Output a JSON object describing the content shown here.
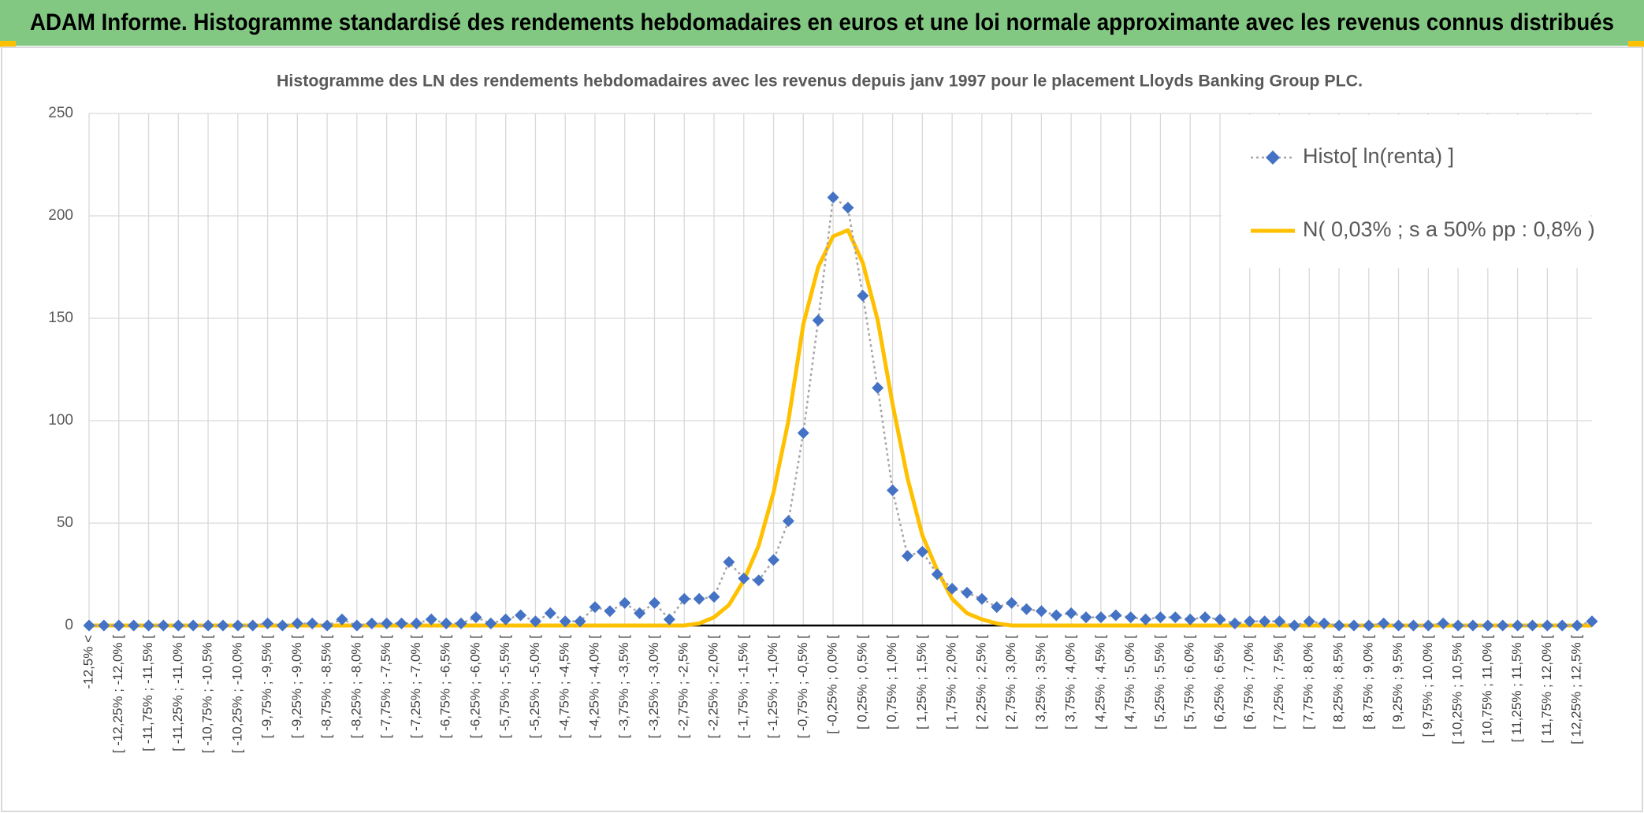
{
  "header": {
    "title": "ADAM Informe. Histogramme standardisé des rendements hebdomadaires en euros et une loi normale approximante avec les revenus connus distribués"
  },
  "chart_data": {
    "type": "line",
    "title": "Histogramme des LN des rendements hebdomadaires avec les revenus depuis janv 1997 pour le placement Lloyds Banking Group PLC.",
    "categories": [
      "-12,5% <",
      null,
      "[ -12,25% ; -12,0% [",
      null,
      "[ -11,75% ; -11,5% [",
      null,
      "[ -11,25% ; -11,0% [",
      null,
      "[ -10,75% ; -10,5% [",
      null,
      "[ -10,25% ; -10,0% [",
      null,
      "[ -9,75% ; -9,5% [",
      null,
      "[ -9,25% ; -9,0% [",
      null,
      "[ -8,75% ; -8,5% [",
      null,
      "[ -8,25% ; -8,0% [",
      null,
      "[ -7,75% ; -7,5% [",
      null,
      "[ -7,25% ; -7,0% [",
      null,
      "[ -6,75% ; -6,5% [",
      null,
      "[ -6,25% ; -6,0% [",
      null,
      "[ -5,75% ; -5,5% [",
      null,
      "[ -5,25% ; -5,0% [",
      null,
      "[ -4,75% ; -4,5% [",
      null,
      "[ -4,25% ; -4,0% [",
      null,
      "[ -3,75% ; -3,5% [",
      null,
      "[ -3,25% ; -3,0% [",
      null,
      "[ -2,75% ; -2,5% [",
      null,
      "[ -2,25% ; -2,0% [",
      null,
      "[ -1,75% ; -1,5% [",
      null,
      "[ -1,25% ; -1,0% [",
      null,
      "[ -0,75% ; -0,5% [",
      null,
      "[ -0,25% ; 0,0% [",
      null,
      "[ 0,25% ; 0,5% [",
      null,
      "[ 0,75% ; 1,0% [",
      null,
      "[ 1,25% ; 1,5% [",
      null,
      "[ 1,75% ; 2,0% [",
      null,
      "[ 2,25% ; 2,5% [",
      null,
      "[ 2,75% ; 3,0% [",
      null,
      "[ 3,25% ; 3,5% [",
      null,
      "[ 3,75% ; 4,0% [",
      null,
      "[ 4,25% ; 4,5% [",
      null,
      "[ 4,75% ; 5,0% [",
      null,
      "[ 5,25% ; 5,5% [",
      null,
      "[ 5,75% ; 6,0% [",
      null,
      "[ 6,25% ; 6,5% [",
      null,
      "[ 6,75% ; 7,0% [",
      null,
      "[ 7,25% ; 7,5% [",
      null,
      "[ 7,75% ; 8,0% [",
      null,
      "[ 8,25% ; 8,5% [",
      null,
      "[ 8,75% ; 9,0% [",
      null,
      "[ 9,25% ; 9,5% [",
      null,
      "[ 9,75% ; 10,0% [",
      null,
      "[ 10,25% ; 10,5% [",
      null,
      "[ 10,75% ; 11,0% [",
      null,
      "[ 11,25% ; 11,5% [",
      null,
      "[ 11,75% ; 12,0% [",
      null,
      "[ 12,25% ; 12,5% [",
      null
    ],
    "series": [
      {
        "name": "Histo[ ln(renta) ]",
        "color": "#4472c4",
        "line_color": "#a5a5a5",
        "marker": "diamond",
        "line_style": "dotted",
        "values": [
          0,
          0,
          0,
          0,
          0,
          0,
          0,
          0,
          0,
          0,
          0,
          0,
          1,
          0,
          1,
          1,
          0,
          3,
          0,
          1,
          1,
          1,
          1,
          3,
          1,
          1,
          4,
          1,
          3,
          5,
          2,
          6,
          2,
          2,
          9,
          7,
          11,
          6,
          11,
          3,
          13,
          13,
          14,
          31,
          23,
          22,
          32,
          51,
          94,
          149,
          209,
          204,
          161,
          116,
          66,
          34,
          36,
          25,
          18,
          16,
          13,
          9,
          11,
          8,
          7,
          5,
          6,
          4,
          4,
          5,
          4,
          3,
          4,
          4,
          3,
          4,
          3,
          1,
          2,
          2,
          2,
          0,
          2,
          1,
          0,
          0,
          0,
          1,
          0,
          0,
          0,
          1,
          0,
          0,
          0,
          0,
          0,
          0,
          0,
          0,
          0,
          2
        ]
      },
      {
        "name": "N( 0,03% ; s a 50% pp : 0,8% )",
        "color": "#ffc000",
        "marker": "none",
        "line_style": "solid",
        "values": [
          0,
          0,
          0,
          0,
          0,
          0,
          0,
          0,
          0,
          0,
          0,
          0,
          0,
          0,
          0,
          0,
          0,
          0,
          0,
          0,
          0,
          0,
          0,
          0,
          0,
          0,
          0,
          0,
          0,
          0,
          0,
          0,
          0,
          0,
          0,
          0,
          0,
          0,
          0,
          0,
          0,
          1,
          4,
          10,
          22,
          39,
          65,
          100,
          147,
          175,
          190,
          193,
          177,
          149,
          108,
          72,
          44,
          27,
          13,
          6,
          3,
          1,
          0,
          0,
          0,
          0,
          0,
          0,
          0,
          0,
          0,
          0,
          0,
          0,
          0,
          0,
          0,
          0,
          0,
          0,
          0,
          0,
          0,
          0,
          0,
          0,
          0,
          0,
          0,
          0,
          0,
          0,
          0,
          0,
          0,
          0,
          0,
          0,
          0,
          0,
          0,
          0
        ]
      }
    ],
    "ylim": [
      0,
      250
    ],
    "yticks": [
      0,
      50,
      100,
      150,
      200,
      250
    ],
    "grid": true,
    "legend": "top-right"
  }
}
